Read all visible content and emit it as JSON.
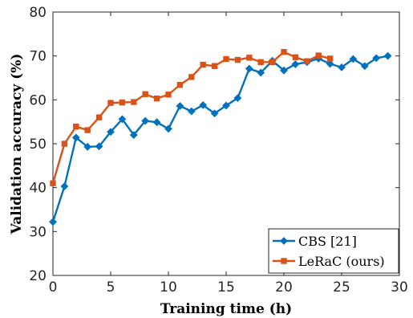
{
  "chart_data": {
    "type": "line",
    "xlabel": "Training time (h)",
    "ylabel": "Validation accuracy (%)",
    "xlim": [
      0,
      30
    ],
    "ylim": [
      20,
      80
    ],
    "xticks": [
      0,
      5,
      10,
      15,
      20,
      25,
      30
    ],
    "yticks": [
      20,
      30,
      40,
      50,
      60,
      70,
      80
    ],
    "grid": false,
    "legend_position": "bottom-right",
    "series": [
      {
        "name": "CBS [21]",
        "color": "#0072BD",
        "marker": "diamond",
        "x": [
          0,
          1,
          2,
          3,
          4,
          5,
          6,
          7,
          8,
          9,
          10,
          11,
          12,
          13,
          14,
          15,
          16,
          17,
          18,
          19,
          20,
          21,
          22,
          23,
          24,
          25,
          26,
          27,
          28,
          29
        ],
        "values": [
          32.2,
          40.3,
          51.4,
          49.3,
          49.4,
          52.7,
          55.6,
          52,
          55.2,
          54.9,
          53.4,
          58.6,
          57.4,
          58.8,
          56.9,
          58.7,
          60.4,
          67.1,
          66.2,
          68.9,
          66.7,
          68.1,
          68.6,
          69.4,
          68.2,
          67.4,
          69.3,
          67.7,
          69.5,
          70
        ]
      },
      {
        "name": "LeRaC (ours)",
        "color": "#D95319",
        "marker": "square",
        "x": [
          0,
          1,
          2,
          3,
          4,
          5,
          6,
          7,
          8,
          9,
          10,
          11,
          12,
          13,
          14,
          15,
          16,
          17,
          18,
          19,
          20,
          21,
          22,
          23,
          24
        ],
        "values": [
          41,
          50,
          53.9,
          53.1,
          56,
          59.3,
          59.4,
          59.5,
          61.3,
          60.3,
          61.2,
          63.4,
          65.2,
          68,
          67.7,
          69.3,
          69.1,
          69.6,
          68.6,
          68.6,
          70.9,
          69.7,
          68.8,
          70.1,
          69.4
        ]
      }
    ]
  }
}
